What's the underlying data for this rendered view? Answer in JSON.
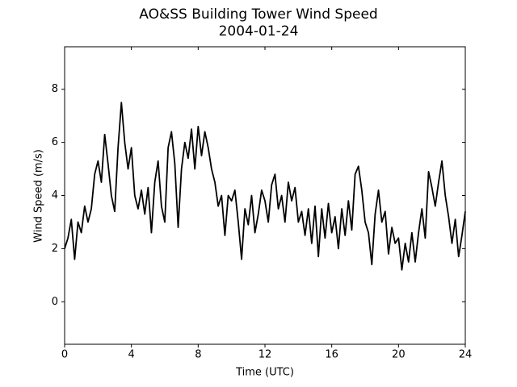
{
  "chart_data": {
    "type": "line",
    "title": "AO&SS Building Tower Wind Speed",
    "subtitle": "2004-01-24",
    "x_label": "Time (UTC)",
    "y_label": "Wind Speed (m/s)",
    "x": [
      0,
      0.2,
      0.4,
      0.6,
      0.8,
      1,
      1.2,
      1.4,
      1.6,
      1.8,
      2,
      2.2,
      2.4,
      2.6,
      2.8,
      3,
      3.2,
      3.4,
      3.6,
      3.8,
      4,
      4.2,
      4.4,
      4.6,
      4.8,
      5,
      5.2,
      5.4,
      5.6,
      5.8,
      6,
      6.2,
      6.4,
      6.6,
      6.8,
      7,
      7.2,
      7.4,
      7.6,
      7.8,
      8,
      8.2,
      8.4,
      8.6,
      8.8,
      9,
      9.2,
      9.4,
      9.6,
      9.8,
      10,
      10.2,
      10.4,
      10.6,
      10.8,
      11,
      11.2,
      11.4,
      11.6,
      11.8,
      12,
      12.2,
      12.4,
      12.6,
      12.8,
      13,
      13.2,
      13.4,
      13.6,
      13.8,
      14,
      14.2,
      14.4,
      14.6,
      14.8,
      15,
      15.2,
      15.4,
      15.6,
      15.8,
      16,
      16.2,
      16.4,
      16.6,
      16.8,
      17,
      17.2,
      17.4,
      17.6,
      17.8,
      18,
      18.2,
      18.4,
      18.6,
      18.8,
      19,
      19.2,
      19.4,
      19.6,
      19.8,
      20,
      20.2,
      20.4,
      20.6,
      20.8,
      21,
      21.2,
      21.4,
      21.6,
      21.8,
      22,
      22.2,
      22.4,
      22.6,
      22.8,
      23,
      23.2,
      23.4,
      23.6,
      23.8,
      24
    ],
    "series": [
      {
        "name": "Wind Speed",
        "color": "#000000",
        "values": [
          2.0,
          2.4,
          3.1,
          1.6,
          3.0,
          2.6,
          3.6,
          3.0,
          3.5,
          4.8,
          5.3,
          4.5,
          6.3,
          5.2,
          4.0,
          3.4,
          5.8,
          7.5,
          6.0,
          5.0,
          5.8,
          4.0,
          3.5,
          4.2,
          3.3,
          4.3,
          2.6,
          4.5,
          5.3,
          3.6,
          3.0,
          5.8,
          6.4,
          5.2,
          2.8,
          5.0,
          6.0,
          5.4,
          6.5,
          5.0,
          6.6,
          5.5,
          6.4,
          5.8,
          5.0,
          4.5,
          3.6,
          4.0,
          2.5,
          4.0,
          3.8,
          4.2,
          3.0,
          1.6,
          3.5,
          2.9,
          4.0,
          2.6,
          3.3,
          4.2,
          3.8,
          3.0,
          4.4,
          4.8,
          3.5,
          4.0,
          3.0,
          4.5,
          3.8,
          4.3,
          3.0,
          3.4,
          2.5,
          3.5,
          2.2,
          3.6,
          1.7,
          3.5,
          2.4,
          3.7,
          2.6,
          3.2,
          2.0,
          3.5,
          2.5,
          3.8,
          2.7,
          4.8,
          5.1,
          4.2,
          3.0,
          2.6,
          1.4,
          3.3,
          4.2,
          3.0,
          3.4,
          1.8,
          2.8,
          2.2,
          2.4,
          1.2,
          2.2,
          1.5,
          2.6,
          1.5,
          2.6,
          3.5,
          2.4,
          4.9,
          4.3,
          3.6,
          4.5,
          5.3,
          4.0,
          3.2,
          2.2,
          3.1,
          1.7,
          2.5,
          3.4
        ]
      }
    ],
    "xlim": [
      0,
      24
    ],
    "xticks": [
      0,
      4,
      8,
      12,
      16,
      20,
      24
    ],
    "ylim": [
      -1.6,
      9.6
    ],
    "yticks": [
      0,
      2,
      4,
      6,
      8
    ]
  }
}
